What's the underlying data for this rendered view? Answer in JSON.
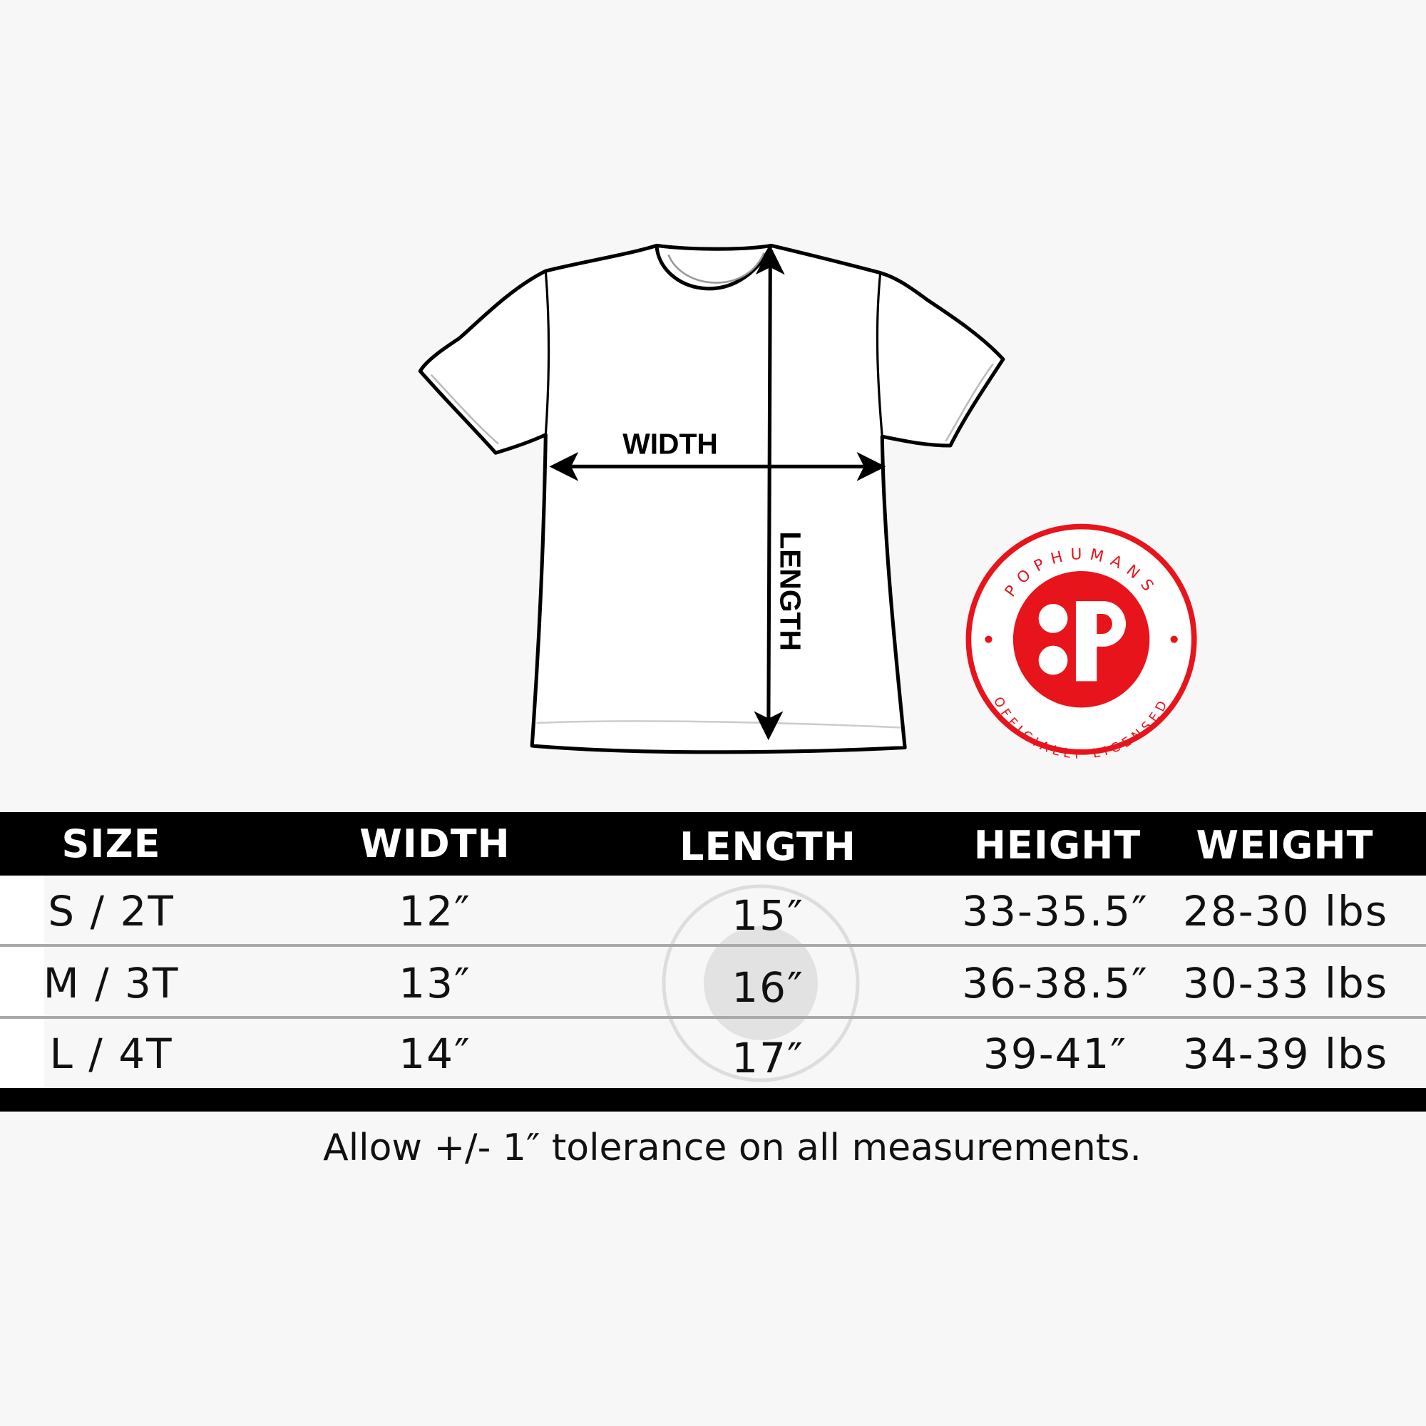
{
  "diagram": {
    "width_label": "WIDTH",
    "length_label": "LENGTH"
  },
  "badge": {
    "brand": "POPHUMANS",
    "subtitle": "OFFICIALLY LICENSED",
    "color": "#e8141b"
  },
  "table": {
    "headers": [
      "SIZE",
      "WIDTH",
      "LENGTH",
      "HEIGHT",
      "WEIGHT"
    ],
    "rows": [
      [
        "S / 2T",
        "12″",
        "15″",
        "33-35.5″",
        "28-30 lbs"
      ],
      [
        "M / 3T",
        "13″",
        "16″",
        "36-38.5″",
        "30-33 lbs"
      ],
      [
        "L / 4T",
        "14″",
        "17″",
        "39-41″",
        "34-39 lbs"
      ]
    ]
  },
  "footer": {
    "note": "Allow +/- 1″ tolerance on all measurements."
  }
}
